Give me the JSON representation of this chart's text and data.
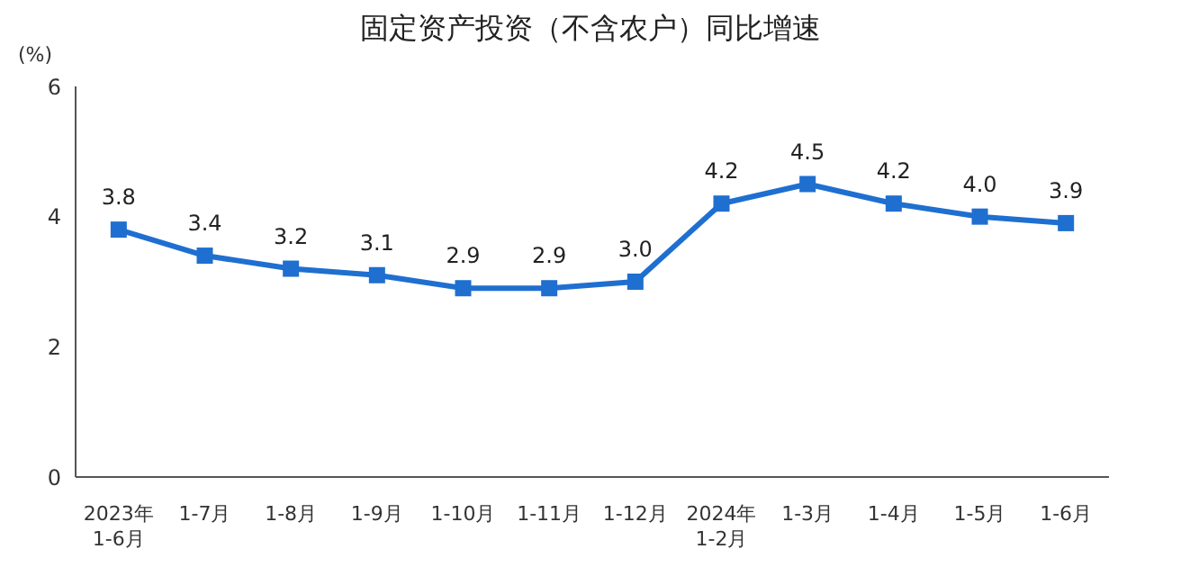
{
  "chart_data": {
    "type": "line",
    "title": "固定资产投资（不含农户）同比增速",
    "ylabel": "(%)",
    "categories": [
      "2023年\n1-6月",
      "1-7月",
      "1-8月",
      "1-9月",
      "1-10月",
      "1-11月",
      "1-12月",
      "2024年\n1-2月",
      "1-3月",
      "1-4月",
      "1-5月",
      "1-6月"
    ],
    "series": [
      {
        "color": "#1f6fd0",
        "values": [
          3.8,
          3.4,
          3.2,
          3.1,
          2.9,
          2.9,
          3.0,
          4.2,
          4.5,
          4.2,
          4.0,
          3.9
        ],
        "value_labels": [
          "3.8",
          "3.4",
          "3.2",
          "3.1",
          "2.9",
          "2.9",
          "3.0",
          "4.2",
          "4.5",
          "4.2",
          "4.0",
          "3.9"
        ]
      }
    ],
    "ylim": [
      0,
      6
    ],
    "yticks": [
      0,
      2,
      4,
      6
    ],
    "grid": false,
    "legend": false,
    "marker": "square",
    "line_style": "solid"
  }
}
